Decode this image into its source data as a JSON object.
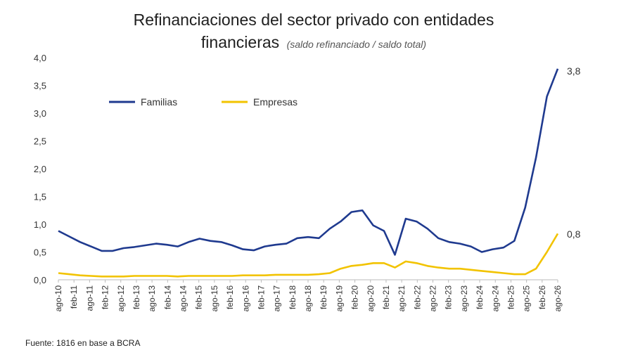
{
  "chart_data": {
    "type": "line",
    "title": "Refinanciaciones del sector privado con entidades",
    "title_line2": "financieras",
    "subtitle": "(saldo refinanciado / saldo total)",
    "source": "Fuente: 1816 en base a BCRA",
    "ylim": [
      0,
      4
    ],
    "y_ticks": [
      "0,0",
      "0,5",
      "1,0",
      "1,5",
      "2,0",
      "2,5",
      "3,0",
      "3,5",
      "4,0"
    ],
    "x_ticks": [
      "ago-10",
      "feb-11",
      "ago-11",
      "feb-12",
      "ago-12",
      "feb-13",
      "ago-13",
      "feb-14",
      "ago-14",
      "feb-15",
      "ago-15",
      "feb-16",
      "ago-16",
      "feb-17",
      "ago-17",
      "feb-18",
      "ago-18",
      "feb-19",
      "ago-19",
      "feb-20",
      "ago-20",
      "feb-21",
      "ago-21",
      "feb-22",
      "ago-22",
      "feb-23",
      "ago-23",
      "feb-24",
      "ago-24",
      "feb-25",
      "ago-25",
      "feb-26",
      "ago-26"
    ],
    "grid": false,
    "legend_placement": "top-left",
    "series": [
      {
        "name": "Familias",
        "color": "#1f3a8f",
        "end_label": "3,8",
        "values": [
          0.88,
          0.78,
          0.68,
          0.6,
          0.52,
          0.52,
          0.57,
          0.59,
          0.62,
          0.65,
          0.63,
          0.6,
          0.68,
          0.74,
          0.7,
          0.68,
          0.62,
          0.55,
          0.53,
          0.6,
          0.63,
          0.65,
          0.75,
          0.77,
          0.75,
          0.92,
          1.05,
          1.22,
          1.25,
          0.98,
          0.88,
          0.45,
          1.1,
          1.05,
          0.92,
          0.75,
          0.68,
          0.65,
          0.6,
          0.5,
          0.55,
          0.58,
          0.7,
          1.3,
          2.2,
          3.3,
          3.8
        ]
      },
      {
        "name": "Empresas",
        "color": "#f2c300",
        "end_label": "0,8",
        "values": [
          0.12,
          0.1,
          0.08,
          0.07,
          0.06,
          0.06,
          0.06,
          0.07,
          0.07,
          0.07,
          0.07,
          0.06,
          0.07,
          0.07,
          0.07,
          0.07,
          0.07,
          0.08,
          0.08,
          0.08,
          0.09,
          0.09,
          0.09,
          0.09,
          0.1,
          0.12,
          0.2,
          0.25,
          0.27,
          0.3,
          0.3,
          0.22,
          0.33,
          0.3,
          0.25,
          0.22,
          0.2,
          0.2,
          0.18,
          0.16,
          0.14,
          0.12,
          0.1,
          0.1,
          0.2,
          0.5,
          0.83
        ]
      }
    ]
  }
}
